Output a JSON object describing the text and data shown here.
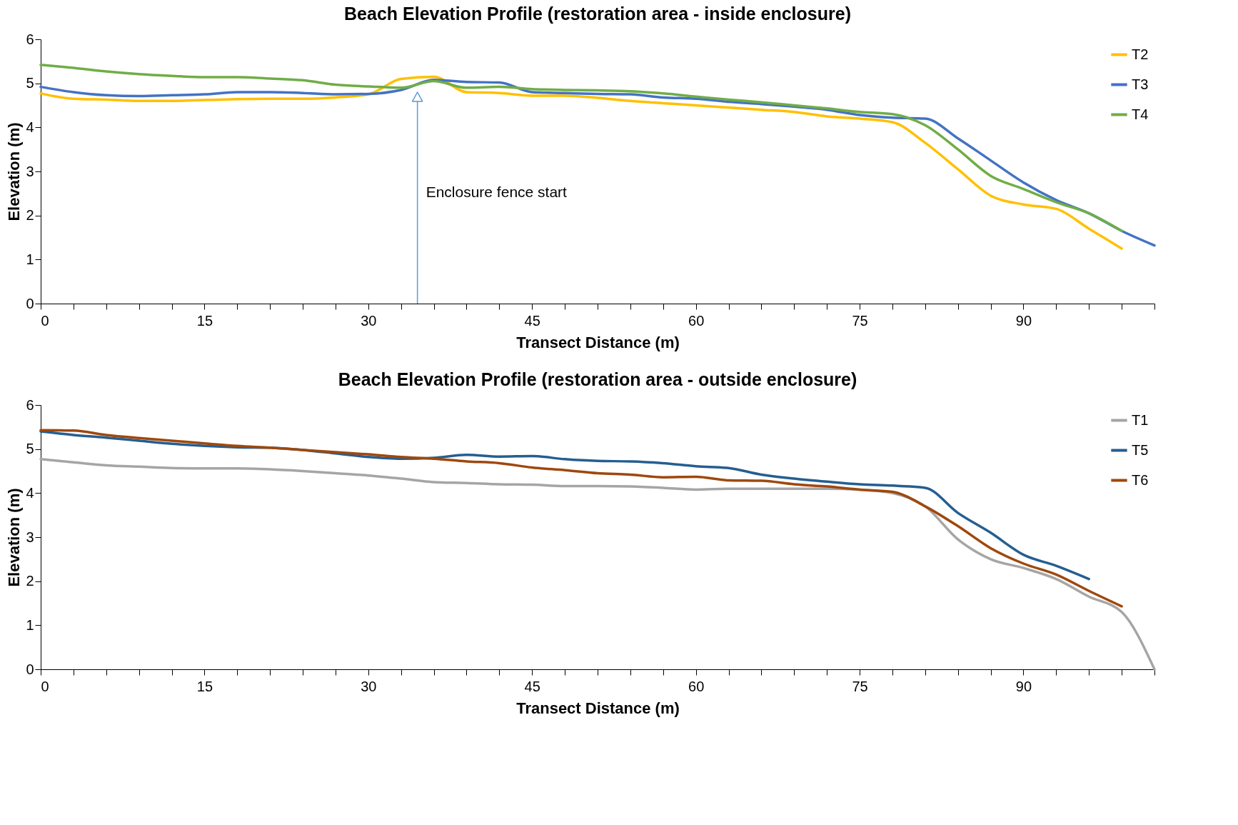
{
  "chart_data": [
    {
      "type": "line",
      "title": "Beach Elevation Profile (restoration area - inside enclosure)",
      "xlabel": "Transect Distance (m)",
      "ylabel": "Elevation (m)",
      "x": [
        0,
        3,
        6,
        9,
        12,
        15,
        18,
        21,
        24,
        27,
        30,
        33,
        36,
        39,
        42,
        45,
        48,
        51,
        54,
        57,
        60,
        63,
        66,
        69,
        72,
        75,
        78,
        81,
        84,
        87,
        90,
        93,
        96,
        99,
        102
      ],
      "series": [
        {
          "name": "T2",
          "color": "#ffc000",
          "values": [
            4.77,
            4.65,
            4.63,
            4.6,
            4.6,
            4.62,
            4.64,
            4.65,
            4.65,
            4.68,
            4.75,
            5.1,
            5.15,
            4.8,
            4.78,
            4.72,
            4.72,
            4.67,
            4.6,
            4.55,
            4.5,
            4.45,
            4.4,
            4.35,
            4.25,
            4.2,
            4.12,
            3.65,
            3.05,
            2.45,
            2.25,
            2.15,
            1.7,
            1.25,
            null
          ]
        },
        {
          "name": "T3",
          "color": "#4472c4",
          "values": [
            4.92,
            4.8,
            4.73,
            4.71,
            4.73,
            4.75,
            4.8,
            4.8,
            4.78,
            4.75,
            4.76,
            4.85,
            5.08,
            5.03,
            5.02,
            4.8,
            4.78,
            4.76,
            4.75,
            4.68,
            4.65,
            4.58,
            4.53,
            4.47,
            4.4,
            4.28,
            4.22,
            4.2,
            3.75,
            3.25,
            2.75,
            2.35,
            2.05,
            1.65,
            1.32
          ]
        },
        {
          "name": "T4",
          "color": "#70ad47",
          "values": [
            5.42,
            5.35,
            5.27,
            5.21,
            5.17,
            5.14,
            5.14,
            5.11,
            5.07,
            4.97,
            4.93,
            4.9,
            5.05,
            4.9,
            4.92,
            4.87,
            4.85,
            4.84,
            4.82,
            4.77,
            4.7,
            4.63,
            4.57,
            4.5,
            4.43,
            4.35,
            4.3,
            4.05,
            3.5,
            2.9,
            2.6,
            2.3,
            2.05,
            1.65,
            null
          ]
        }
      ],
      "ref_lines": [
        {
          "axis": "x",
          "value": 34.5,
          "label": "Enclosure fence start",
          "color": "#5b9bd5"
        }
      ],
      "xlim": [
        0,
        102
      ],
      "xticks": [
        0,
        {
          "value": 3,
          "label": null
        },
        {
          "value": 6,
          "label": null
        },
        {
          "value": 9,
          "label": null
        },
        {
          "value": 12,
          "label": null
        },
        15,
        {
          "value": 18,
          "label": null
        },
        {
          "value": 21,
          "label": null
        },
        {
          "value": 24,
          "label": null
        },
        {
          "value": 27,
          "label": null
        },
        30,
        {
          "value": 33,
          "label": null
        },
        {
          "value": 36,
          "label": null
        },
        {
          "value": 39,
          "label": null
        },
        {
          "value": 42,
          "label": null
        },
        45,
        {
          "value": 48,
          "label": null
        },
        {
          "value": 51,
          "label": null
        },
        {
          "value": 54,
          "label": null
        },
        {
          "value": 57,
          "label": null
        },
        60,
        {
          "value": 63,
          "label": null
        },
        {
          "value": 66,
          "label": null
        },
        {
          "value": 69,
          "label": null
        },
        {
          "value": 72,
          "label": null
        },
        75,
        {
          "value": 78,
          "label": null
        },
        {
          "value": 81,
          "label": null
        },
        {
          "value": 84,
          "label": null
        },
        {
          "value": 87,
          "label": null
        },
        90,
        {
          "value": 93,
          "label": null
        },
        {
          "value": 96,
          "label": null
        },
        {
          "value": 99,
          "label": null
        },
        {
          "value": 102,
          "label": null
        }
      ],
      "ylim": [
        0,
        6
      ],
      "yticks": [
        0,
        1,
        2,
        3,
        4,
        5,
        6
      ],
      "grid": false,
      "legend": "top right"
    },
    {
      "type": "line",
      "title": "Beach Elevation Profile (restoration area - outside enclosure)",
      "xlabel": "Transect Distance (m)",
      "ylabel": "Elevation (m)",
      "x": [
        0,
        3,
        6,
        9,
        12,
        15,
        18,
        21,
        24,
        27,
        30,
        33,
        36,
        39,
        42,
        45,
        48,
        51,
        54,
        57,
        60,
        63,
        66,
        69,
        72,
        75,
        78,
        81,
        84,
        87,
        90,
        93,
        96,
        99,
        102
      ],
      "series": [
        {
          "name": "T1",
          "color": "#a5a5a5",
          "values": [
            4.77,
            4.7,
            4.63,
            4.6,
            4.57,
            4.56,
            4.56,
            4.54,
            4.5,
            4.45,
            4.4,
            4.33,
            4.25,
            4.23,
            4.2,
            4.19,
            4.16,
            4.16,
            4.15,
            4.12,
            4.08,
            4.1,
            4.1,
            4.1,
            4.1,
            4.08,
            4.0,
            3.7,
            2.95,
            2.5,
            2.3,
            2.05,
            1.65,
            1.3,
            0
          ]
        },
        {
          "name": "T5",
          "color": "#255e91",
          "values": [
            5.4,
            5.32,
            5.26,
            5.19,
            5.12,
            5.07,
            5.04,
            5.03,
            4.98,
            4.9,
            4.82,
            4.78,
            4.8,
            4.87,
            4.83,
            4.84,
            4.77,
            4.73,
            4.72,
            4.68,
            4.61,
            4.57,
            4.42,
            4.33,
            4.26,
            4.2,
            4.17,
            4.12,
            3.55,
            3.1,
            2.6,
            2.35,
            2.05,
            null,
            null
          ]
        },
        {
          "name": "T6",
          "color": "#9e480e",
          "values": [
            5.43,
            5.42,
            5.32,
            5.25,
            5.19,
            5.13,
            5.07,
            5.03,
            4.98,
            4.93,
            4.88,
            4.82,
            4.78,
            4.72,
            4.68,
            4.58,
            4.52,
            4.45,
            4.42,
            4.36,
            4.37,
            4.29,
            4.28,
            4.2,
            4.15,
            4.08,
            4.03,
            3.7,
            3.25,
            2.75,
            2.4,
            2.15,
            1.78,
            1.43,
            null
          ]
        }
      ],
      "xlim": [
        0,
        102
      ],
      "xticks": [
        0,
        {
          "value": 3,
          "label": null
        },
        {
          "value": 6,
          "label": null
        },
        {
          "value": 9,
          "label": null
        },
        {
          "value": 12,
          "label": null
        },
        15,
        {
          "value": 18,
          "label": null
        },
        {
          "value": 21,
          "label": null
        },
        {
          "value": 24,
          "label": null
        },
        {
          "value": 27,
          "label": null
        },
        30,
        {
          "value": 33,
          "label": null
        },
        {
          "value": 36,
          "label": null
        },
        {
          "value": 39,
          "label": null
        },
        {
          "value": 42,
          "label": null
        },
        45,
        {
          "value": 48,
          "label": null
        },
        {
          "value": 51,
          "label": null
        },
        {
          "value": 54,
          "label": null
        },
        {
          "value": 57,
          "label": null
        },
        60,
        {
          "value": 63,
          "label": null
        },
        {
          "value": 66,
          "label": null
        },
        {
          "value": 69,
          "label": null
        },
        {
          "value": 72,
          "label": null
        },
        75,
        {
          "value": 78,
          "label": null
        },
        {
          "value": 81,
          "label": null
        },
        {
          "value": 84,
          "label": null
        },
        {
          "value": 87,
          "label": null
        },
        90,
        {
          "value": 93,
          "label": null
        },
        {
          "value": 96,
          "label": null
        },
        {
          "value": 99,
          "label": null
        },
        {
          "value": 102,
          "label": null
        }
      ],
      "ylim": [
        0,
        6
      ],
      "yticks": [
        0,
        1,
        2,
        3,
        4,
        5,
        6
      ],
      "grid": false,
      "legend": "top right"
    }
  ]
}
